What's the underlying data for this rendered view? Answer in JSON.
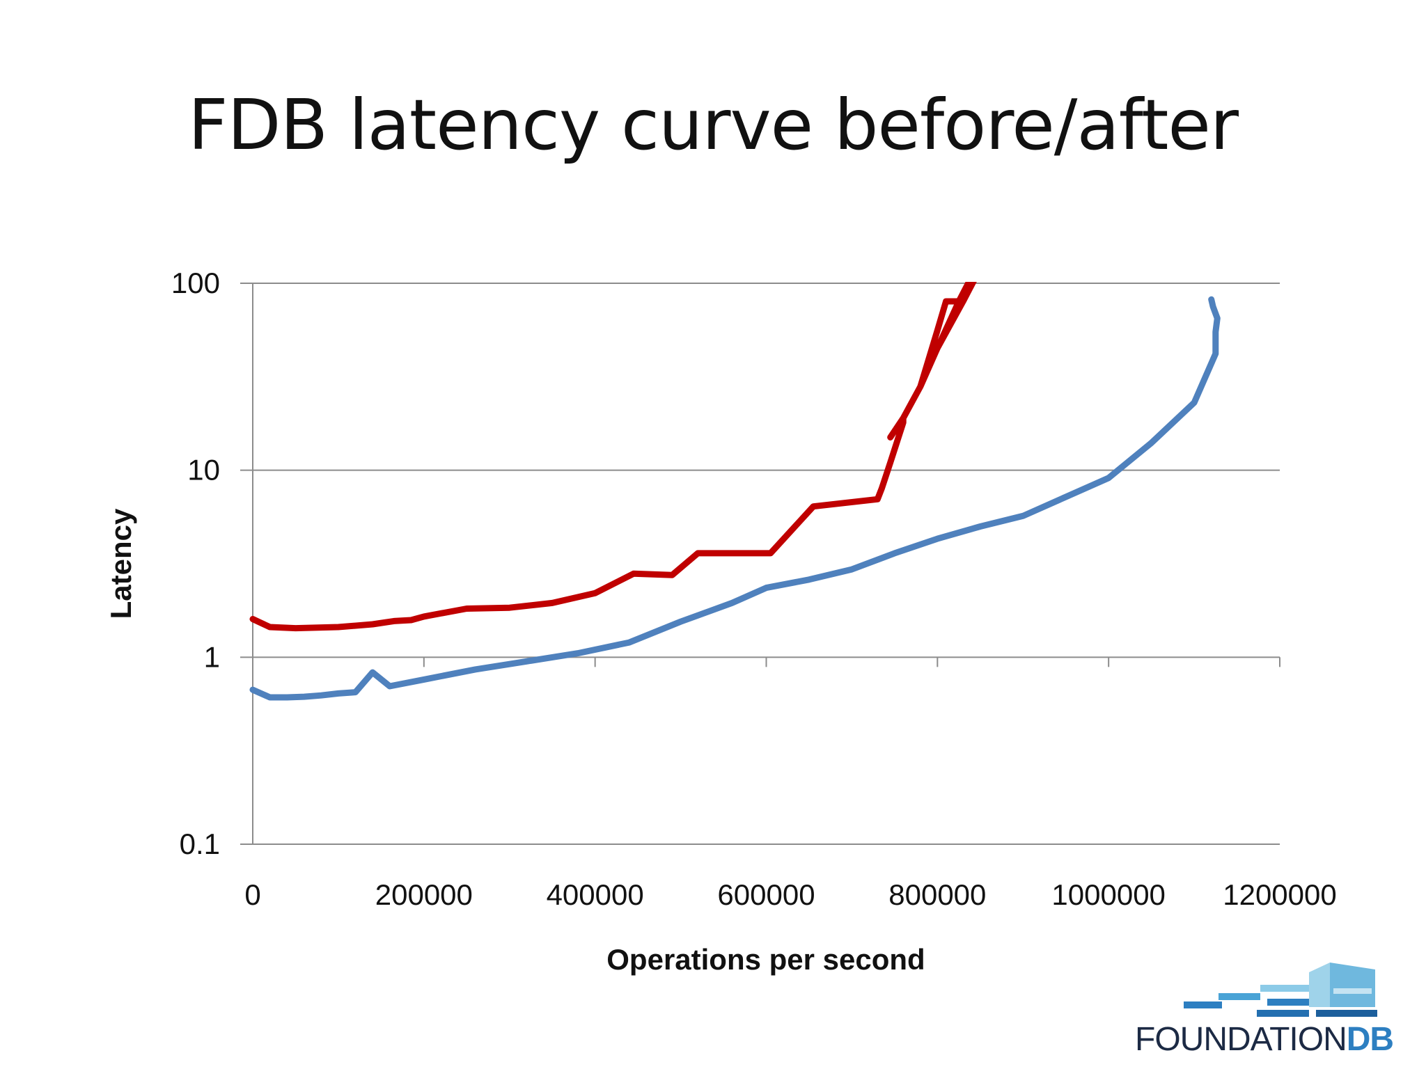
{
  "slide": {
    "title": "FDB latency curve before/after"
  },
  "chart_data": {
    "type": "line",
    "title": "",
    "xlabel": "Operations per second",
    "ylabel": "Latency",
    "xlim": [
      0,
      1200000
    ],
    "ylim": [
      0.1,
      100
    ],
    "yscale": "log",
    "x_ticks": [
      "0",
      "200000",
      "400000",
      "600000",
      "800000",
      "1000000",
      "1200000"
    ],
    "y_ticks": [
      "0.1",
      "1",
      "10",
      "100"
    ],
    "grid": "horizontal",
    "legend": "none",
    "series": [
      {
        "color": "#c00000",
        "points": [
          [
            0,
            1.6
          ],
          [
            20000,
            1.45
          ],
          [
            50000,
            1.43
          ],
          [
            100000,
            1.45
          ],
          [
            140000,
            1.5
          ],
          [
            165000,
            1.56
          ],
          [
            185000,
            1.58
          ],
          [
            200000,
            1.65
          ],
          [
            250000,
            1.82
          ],
          [
            300000,
            1.84
          ],
          [
            350000,
            1.95
          ],
          [
            400000,
            2.2
          ],
          [
            445000,
            2.8
          ],
          [
            490000,
            2.75
          ],
          [
            520000,
            3.6
          ],
          [
            575000,
            3.6
          ],
          [
            605000,
            3.6
          ],
          [
            655000,
            6.4
          ],
          [
            730000,
            7.0
          ],
          [
            735000,
            8.0
          ],
          [
            745000,
            11
          ],
          [
            760000,
            18
          ],
          [
            760000,
            19
          ],
          [
            780000,
            28
          ],
          [
            800000,
            56
          ],
          [
            810000,
            80
          ],
          [
            825000,
            80
          ],
          [
            845000,
            120
          ],
          [
            825000,
            80
          ],
          [
            800000,
            45
          ],
          [
            780000,
            28
          ],
          [
            760000,
            19
          ],
          [
            745000,
            15
          ],
          [
            760000,
            19
          ],
          [
            780000,
            28
          ],
          [
            800000,
            45
          ],
          [
            830000,
            80
          ],
          [
            850000,
            120
          ]
        ]
      },
      {
        "color": "#4f81bd",
        "points": [
          [
            0,
            0.67
          ],
          [
            20000,
            0.61
          ],
          [
            40000,
            0.61
          ],
          [
            60000,
            0.615
          ],
          [
            80000,
            0.625
          ],
          [
            100000,
            0.64
          ],
          [
            120000,
            0.65
          ],
          [
            140000,
            0.83
          ],
          [
            160000,
            0.7
          ],
          [
            200000,
            0.76
          ],
          [
            260000,
            0.86
          ],
          [
            320000,
            0.95
          ],
          [
            380000,
            1.05
          ],
          [
            440000,
            1.2
          ],
          [
            500000,
            1.55
          ],
          [
            560000,
            1.95
          ],
          [
            600000,
            2.35
          ],
          [
            650000,
            2.6
          ],
          [
            700000,
            2.95
          ],
          [
            750000,
            3.6
          ],
          [
            800000,
            4.3
          ],
          [
            850000,
            5.0
          ],
          [
            900000,
            5.7
          ],
          [
            950000,
            7.2
          ],
          [
            1000000,
            9.1
          ],
          [
            1050000,
            14
          ],
          [
            1100000,
            23
          ],
          [
            1125000,
            42
          ],
          [
            1125000,
            55
          ],
          [
            1127000,
            65
          ],
          [
            1122000,
            75
          ],
          [
            1120000,
            82
          ]
        ]
      }
    ]
  },
  "logo": {
    "text_main": "FOUNDATION",
    "text_accent": "DB"
  }
}
